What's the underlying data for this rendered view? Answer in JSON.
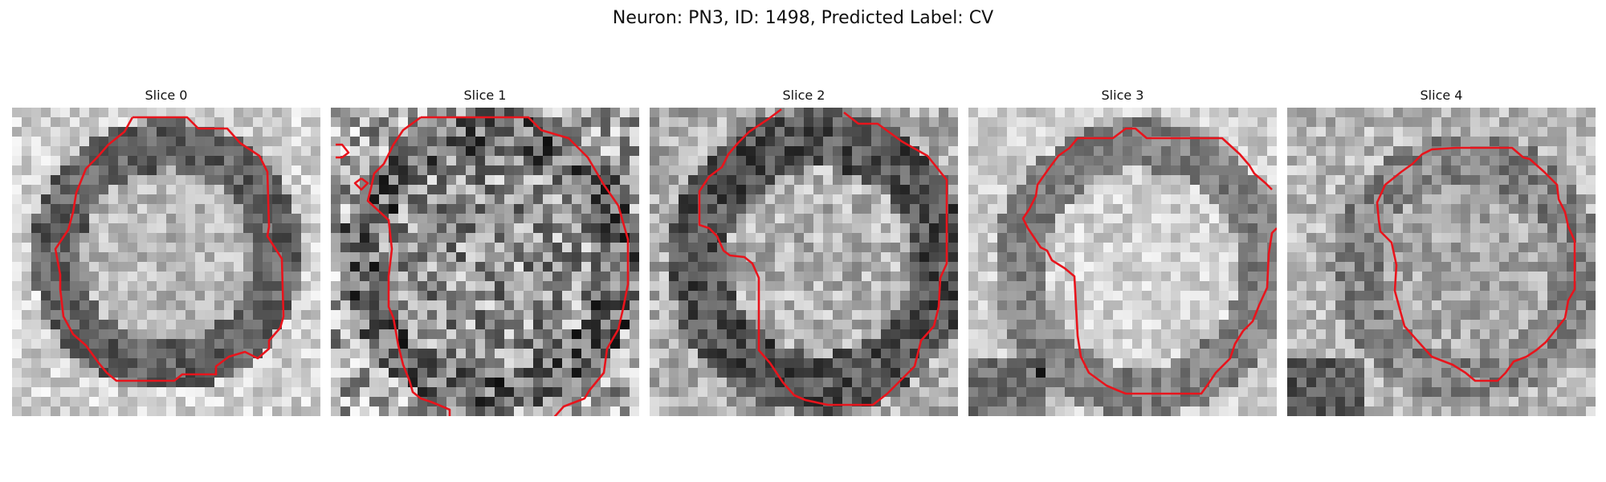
{
  "figure": {
    "title": "Neuron: PN3, ID: 1498, Predicted Label: CV"
  },
  "colors": {
    "contour": "#e8141c"
  },
  "panels": [
    {
      "title": "Slice 0"
    },
    {
      "title": "Slice 1"
    },
    {
      "title": "Slice 2"
    },
    {
      "title": "Slice 3"
    },
    {
      "title": "Slice 4"
    }
  ]
}
